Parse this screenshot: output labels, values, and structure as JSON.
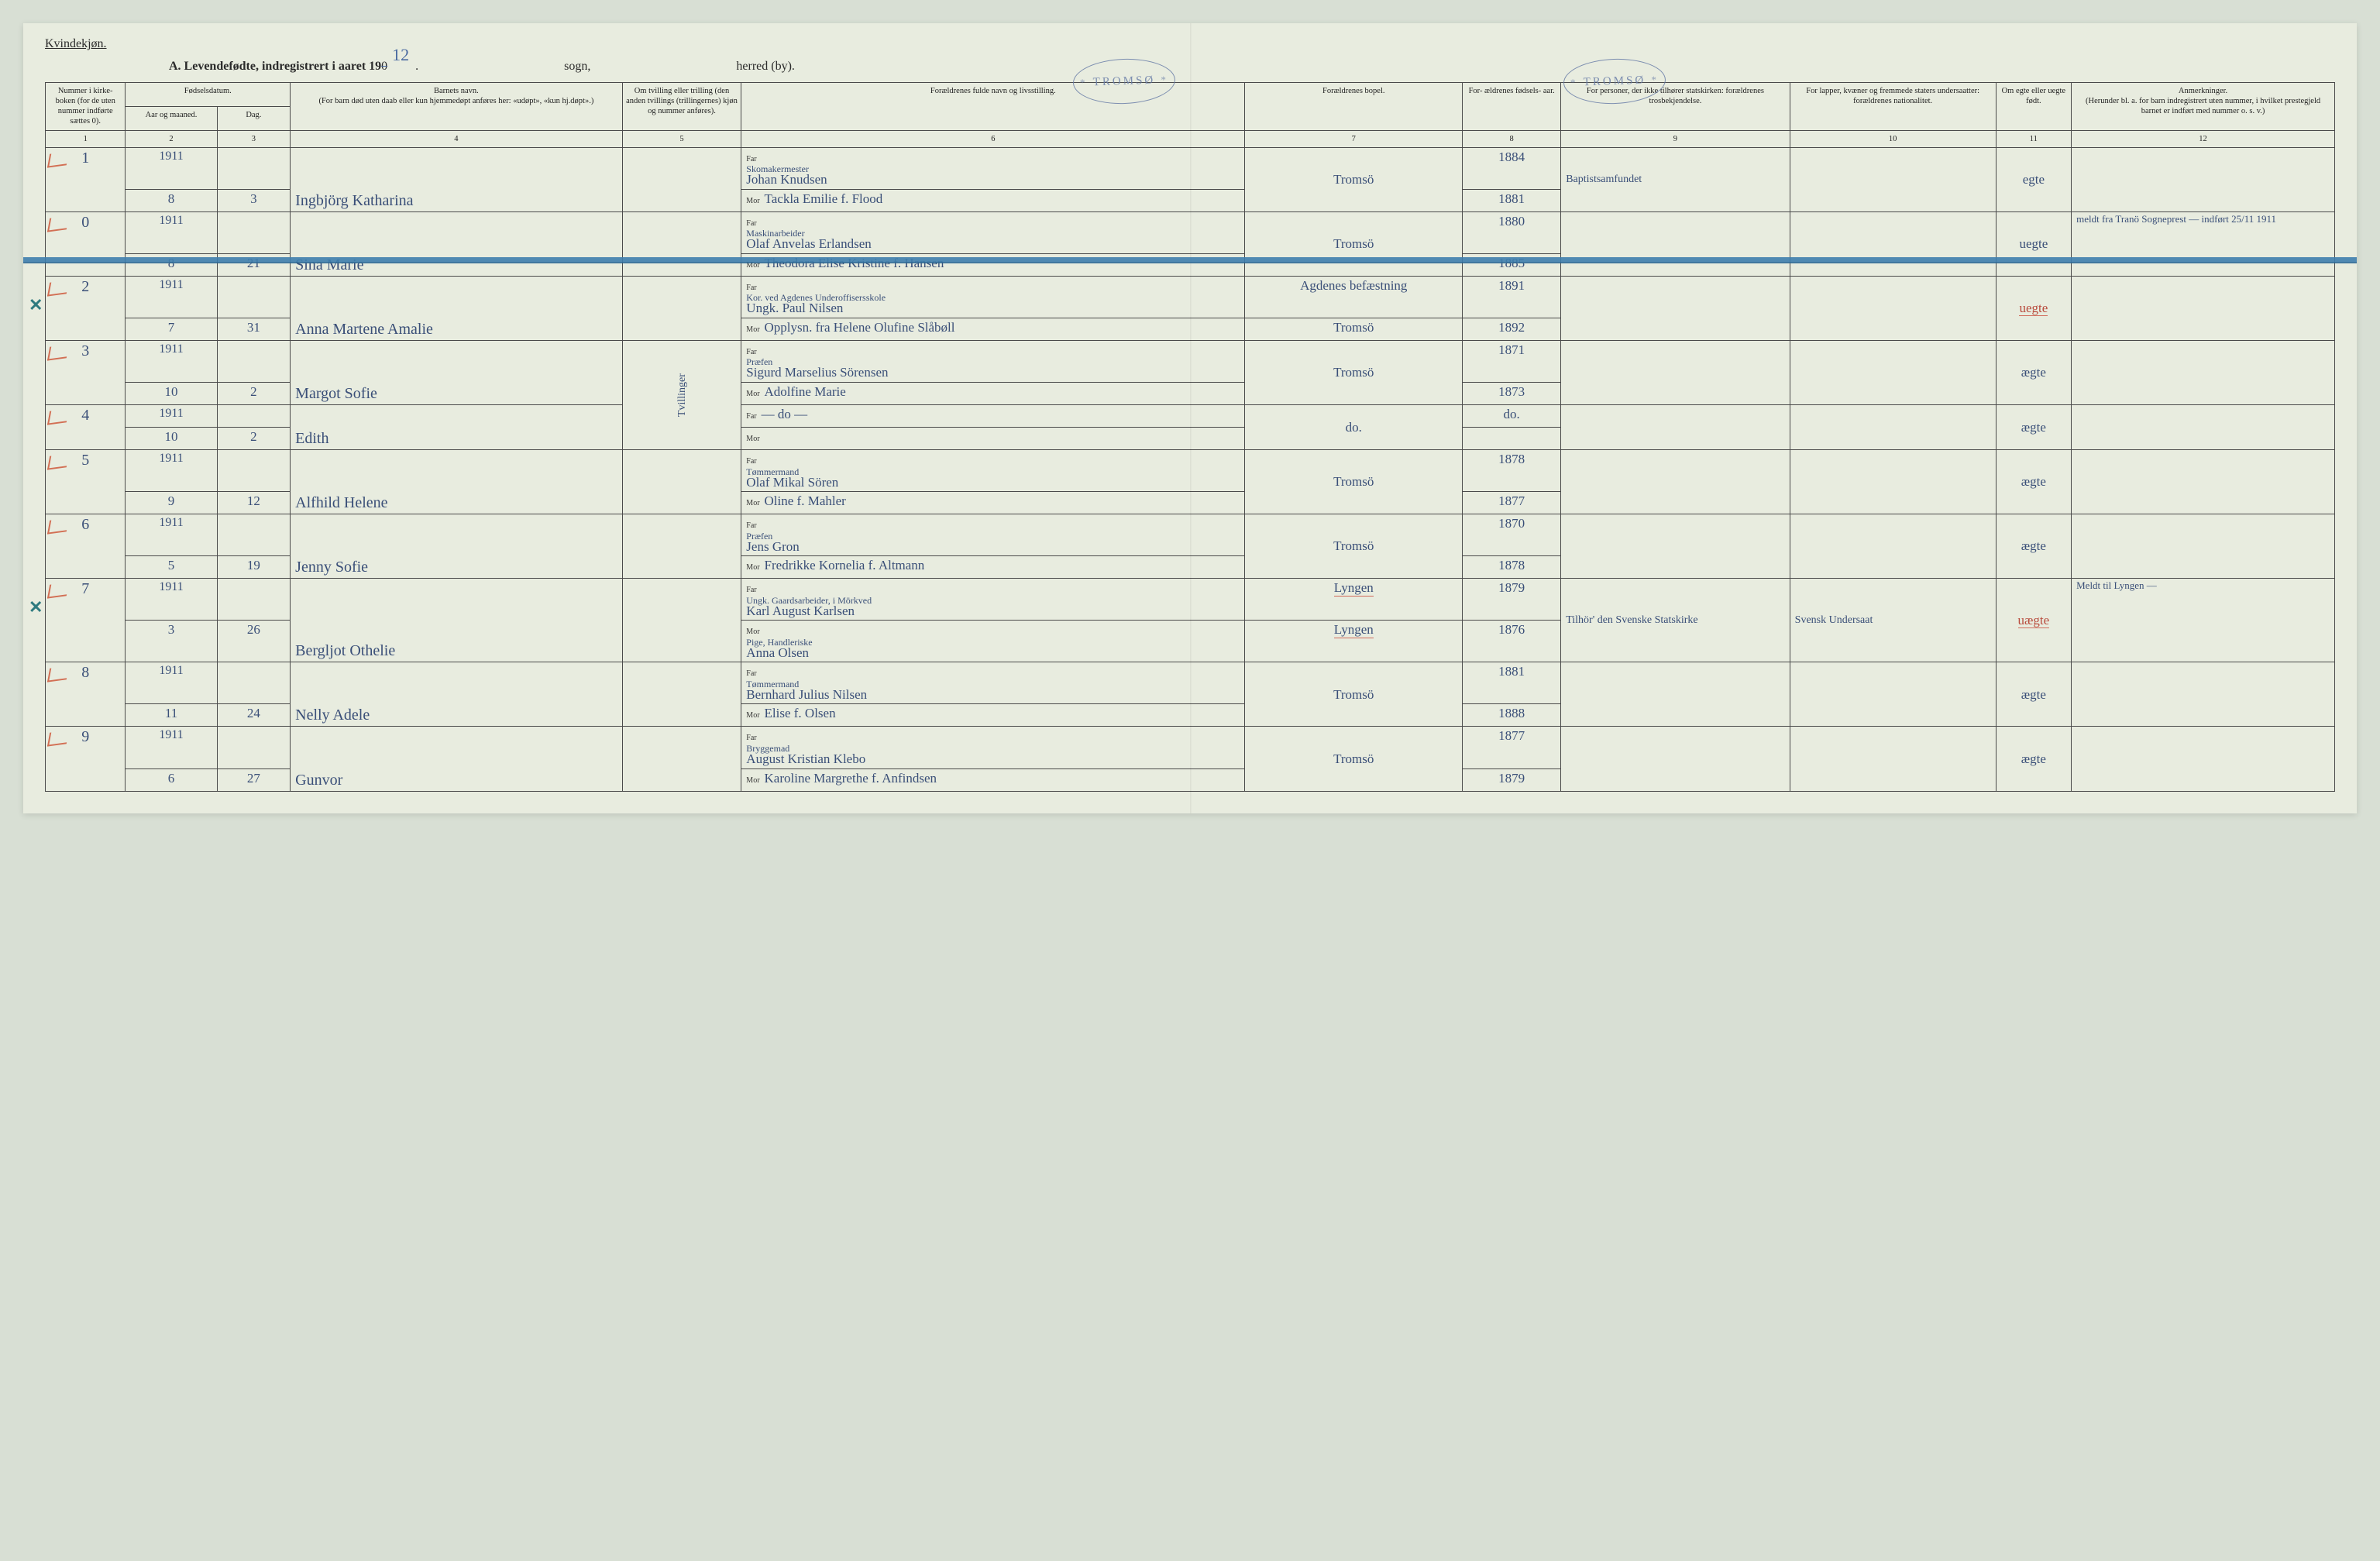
{
  "header": {
    "gender": "Kvindekjøn.",
    "title_prefix": "A.  Levendefødte, indregistrert i aaret 19",
    "title_strike": "0",
    "year_handwritten": "12",
    "sogn_label": "sogn,",
    "herred_label": "herred (by).",
    "stamp_text": "TROMSØ"
  },
  "columns": {
    "c1": "Nummer i kirke- boken (for de uten nummer indførte sættes 0).",
    "c2_group": "Fødselsdatum.",
    "c2": "Aar og maaned.",
    "c3": "Dag.",
    "c4": "Barnets navn.\n(For barn død uten daab eller kun hjemmedøpt anføres her: «udøpt», «kun hj.døpt».)",
    "c5": "Om tvilling eller trilling (den anden tvillings (trillingernes) kjøn og nummer anføres).",
    "c6": "Forældrenes fulde navn og livsstilling.",
    "c7": "Forældrenes bopel.",
    "c8": "For- ældrenes fødsels- aar.",
    "c9": "For personer, der ikke tilhører statskirken: forældrenes trosbekjendelse.",
    "c10": "For lapper, kvæner og fremmede staters undersaatter: forældrenes nationalitet.",
    "c11": "Om egte eller uegte født.",
    "c12": "Anmerkninger.\n(Herunder bl. a. for barn indregistrert uten nummer, i hvilket prestegjeld barnet er indført med nummer o. s. v.)",
    "far": "Far",
    "mor": "Mor",
    "nums": [
      "1",
      "2",
      "3",
      "4",
      "5",
      "6",
      "7",
      "8",
      "9",
      "10",
      "11",
      "12"
    ]
  },
  "twins_label": "Tvillinger",
  "rows": [
    {
      "num": "1",
      "margin_x": false,
      "year": "1911",
      "month": "8",
      "day": "3",
      "name": "Ingbjörg Katharina",
      "far_occ": "Skomakermester",
      "far": "Johan Knudsen",
      "mor": "Tackla Emilie f. Flood",
      "bopel": "Tromsö",
      "far_aar": "1884",
      "mor_aar": "1881",
      "tros": "Baptistsamfundet",
      "nat": "",
      "egte": "egte",
      "anm": ""
    },
    {
      "num": "0",
      "margin_x": false,
      "struck": true,
      "year": "1911",
      "month": "8",
      "day": "21",
      "name": "Sina Marie",
      "far_occ": "Maskinarbeider",
      "far": "Olaf Anvelas Erlandsen",
      "mor": "Theodora Elise Kristine f. Hansen",
      "bopel": "Tromsö",
      "far_aar": "1880",
      "mor_aar": "1885",
      "tros": "",
      "nat": "",
      "egte": "uegte",
      "anm": "meldt fra Tranö Sogneprest — indført 25/11 1911"
    },
    {
      "num": "2",
      "margin_x": true,
      "year": "1911",
      "month": "7",
      "day": "31",
      "name": "Anna Martene Amalie",
      "far_occ": "Kor. ved Agdenes Underoffisersskole",
      "far": "Ungk. Paul Nilsen",
      "mor": "Opplysn. fra Helene Olufine Slåbøll",
      "bopel": "Agdenes befæstning",
      "bopel2": "Tromsö",
      "far_aar": "1891",
      "mor_aar": "1892",
      "tros": "",
      "nat": "",
      "egte": "uegte",
      "egte_red": true,
      "anm": ""
    },
    {
      "num": "3",
      "margin_x": false,
      "twin_start": true,
      "year": "1911",
      "month": "10",
      "day": "2",
      "name": "Margot Sofie",
      "far_occ": "Præfen",
      "far": "Sigurd Marselius Sörensen",
      "mor": "Adolfine Marie",
      "bopel": "Tromsö",
      "far_aar": "1871",
      "mor_aar": "1873",
      "tros": "",
      "nat": "",
      "egte": "ægte",
      "anm": ""
    },
    {
      "num": "4",
      "margin_x": false,
      "twin_end": true,
      "year": "1911",
      "month": "10",
      "day": "2",
      "name": "Edith",
      "far_occ": "",
      "far": "— do —",
      "mor": "",
      "bopel": "do.",
      "far_aar": "do.",
      "mor_aar": "",
      "tros": "",
      "nat": "",
      "egte": "ægte",
      "anm": ""
    },
    {
      "num": "5",
      "margin_x": false,
      "year": "1911",
      "month": "9",
      "day": "12",
      "name": "Alfhild Helene",
      "far_occ": "Tømmermand",
      "far": "Olaf Mikal Sören",
      "mor": "Oline f. Mahler",
      "bopel": "Tromsö",
      "far_aar": "1878",
      "mor_aar": "1877",
      "tros": "",
      "nat": "",
      "egte": "ægte",
      "anm": ""
    },
    {
      "num": "6",
      "margin_x": false,
      "year": "1911",
      "month": "5",
      "day": "19",
      "name": "Jenny Sofie",
      "far_occ": "Præfen",
      "far": "Jens Gron",
      "mor": "Fredrikke Kornelia f. Altmann",
      "bopel": "Tromsö",
      "far_aar": "1870",
      "mor_aar": "1878",
      "tros": "",
      "nat": "",
      "egte": "ægte",
      "anm": ""
    },
    {
      "num": "7",
      "margin_x": true,
      "year": "1911",
      "month": "3",
      "day": "26",
      "name": "Bergljot Othelie",
      "far_occ": "Ungk. Gaardsarbeider, i Mörkved",
      "far": "Karl August Karlsen",
      "mor_occ": "Pige, Handleriske",
      "mor": "Anna Olsen",
      "bopel": "Lyngen",
      "bopel2": "Lyngen",
      "bopel_red": true,
      "far_aar": "1879",
      "mor_aar": "1876",
      "tros": "Tilhör' den Svenske Statskirke",
      "nat": "Svensk Undersaat",
      "egte": "uægte",
      "egte_red": true,
      "anm": "Meldt til Lyngen —"
    },
    {
      "num": "8",
      "margin_x": false,
      "year": "1911",
      "month": "11",
      "day": "24",
      "name": "Nelly Adele",
      "far_occ": "Tømmermand",
      "far": "Bernhard Julius Nilsen",
      "mor": "Elise f. Olsen",
      "bopel": "Tromsö",
      "far_aar": "1881",
      "mor_aar": "1888",
      "tros": "",
      "nat": "",
      "egte": "ægte",
      "anm": ""
    },
    {
      "num": "9",
      "margin_x": false,
      "year": "1911",
      "month": "6",
      "day": "27",
      "name": "Gunvor",
      "far_occ": "Bryggemad",
      "far": "August Kristian Klebo",
      "mor": "Karoline Margrethe f. Anfindsen",
      "bopel": "Tromsö",
      "far_aar": "1877",
      "mor_aar": "1879",
      "tros": "",
      "nat": "",
      "egte": "ægte",
      "anm": ""
    }
  ],
  "colors": {
    "ink": "#3a4f78",
    "print": "#2a2a2a",
    "rule": "#4a4a4a",
    "red": "#cf5a3c",
    "blue_strike": "#3f7fae",
    "stamp": "#6a7ea8",
    "paper": "#e8ecdf"
  }
}
